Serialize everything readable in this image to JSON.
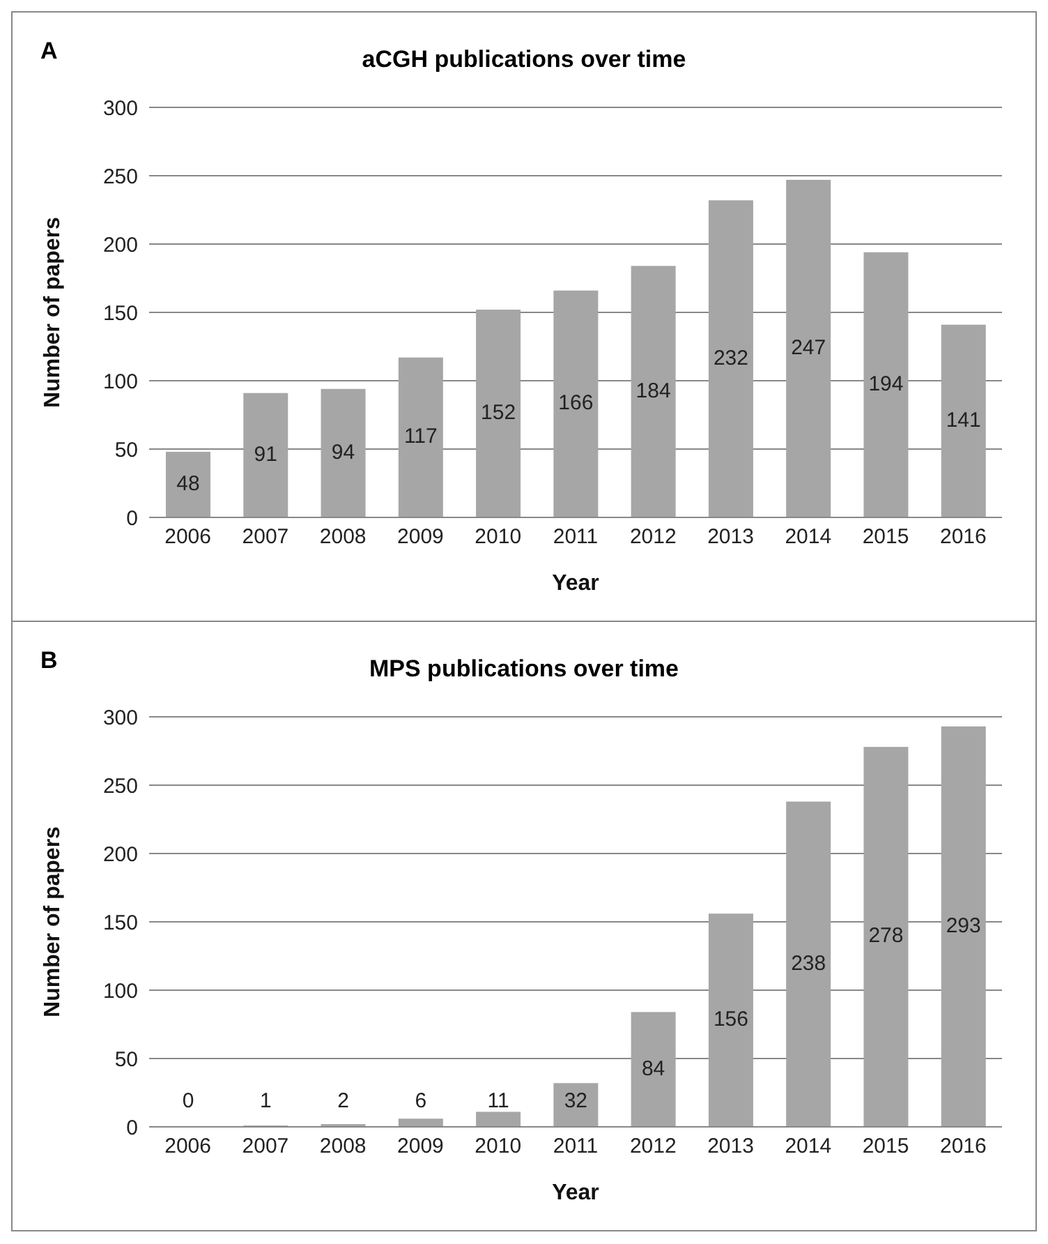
{
  "chart_data": [
    {
      "type": "bar",
      "title": "aCGH publications over time",
      "xlabel": "Year",
      "ylabel": "Number of papers",
      "annotations": [
        "A"
      ],
      "categories": [
        "2006",
        "2007",
        "2008",
        "2009",
        "2010",
        "2011",
        "2012",
        "2013",
        "2014",
        "2015",
        "2016"
      ],
      "values": [
        48,
        91,
        94,
        117,
        152,
        166,
        184,
        232,
        247,
        194,
        141
      ],
      "color": "#a6a6a6",
      "ylim": [
        0,
        300
      ],
      "yticks": [
        0,
        50,
        100,
        150,
        200,
        250,
        300
      ],
      "grid": "y",
      "data_labels": true
    },
    {
      "type": "bar",
      "title": "MPS publications over time",
      "xlabel": "Year",
      "ylabel": "Number of papers",
      "annotations": [
        "B"
      ],
      "categories": [
        "2006",
        "2007",
        "2008",
        "2009",
        "2010",
        "2011",
        "2012",
        "2013",
        "2014",
        "2015",
        "2016"
      ],
      "values": [
        0,
        1,
        2,
        6,
        11,
        32,
        84,
        156,
        238,
        278,
        293
      ],
      "color": "#a6a6a6",
      "ylim": [
        0,
        300
      ],
      "yticks": [
        0,
        50,
        100,
        150,
        200,
        250,
        300
      ],
      "grid": "y",
      "data_labels": true
    }
  ]
}
